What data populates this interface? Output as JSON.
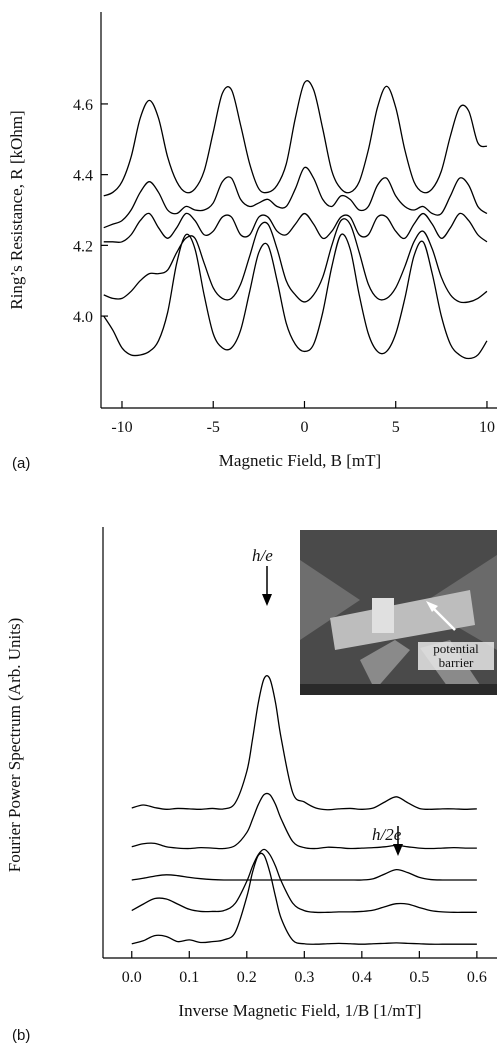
{
  "chart_data": [
    {
      "type": "line",
      "panel_label": "(a)",
      "x_label": "Magnetic Field, B [mT]",
      "y_label": "Ring’s Resistance, R [kOhm]",
      "color": "#000000",
      "x": [
        -11,
        -10.5,
        -10,
        -9.5,
        -9,
        -8.5,
        -8,
        -7.5,
        -7,
        -6.5,
        -6,
        -5.5,
        -5,
        -4.5,
        -4,
        -3.5,
        -3,
        -2.5,
        -2,
        -1.5,
        -1,
        -0.5,
        0,
        0.5,
        1,
        1.5,
        2,
        2.5,
        3,
        3.5,
        4,
        4.5,
        5,
        5.5,
        6,
        6.5,
        7,
        7.5,
        8,
        8.5,
        9,
        9.5,
        10
      ],
      "series": [
        {
          "values": [
            4.34,
            4.35,
            4.38,
            4.45,
            4.56,
            4.61,
            4.56,
            4.45,
            4.38,
            4.35,
            4.36,
            4.41,
            4.52,
            4.63,
            4.64,
            4.54,
            4.43,
            4.36,
            4.35,
            4.37,
            4.43,
            4.56,
            4.66,
            4.64,
            4.53,
            4.41,
            4.36,
            4.35,
            4.38,
            4.47,
            4.59,
            4.65,
            4.59,
            4.47,
            4.38,
            4.35,
            4.36,
            4.41,
            4.51,
            4.59,
            4.58,
            4.49,
            4.48
          ]
        },
        {
          "values": [
            4.25,
            4.26,
            4.27,
            4.3,
            4.35,
            4.38,
            4.35,
            4.3,
            4.29,
            4.31,
            4.3,
            4.3,
            4.32,
            4.38,
            4.39,
            4.33,
            4.31,
            4.32,
            4.33,
            4.31,
            4.31,
            4.36,
            4.42,
            4.39,
            4.33,
            4.31,
            4.34,
            4.33,
            4.3,
            4.31,
            4.37,
            4.39,
            4.34,
            4.31,
            4.3,
            4.31,
            4.29,
            4.29,
            4.34,
            4.39,
            4.37,
            4.31,
            4.29
          ]
        },
        {
          "values": [
            4.21,
            4.21,
            4.21,
            4.23,
            4.27,
            4.29,
            4.25,
            4.22,
            4.25,
            4.29,
            4.27,
            4.23,
            4.24,
            4.28,
            4.28,
            4.23,
            4.23,
            4.28,
            4.28,
            4.24,
            4.23,
            4.26,
            4.29,
            4.26,
            4.22,
            4.24,
            4.28,
            4.28,
            4.23,
            4.23,
            4.28,
            4.28,
            4.24,
            4.22,
            4.26,
            4.29,
            4.26,
            4.22,
            4.25,
            4.29,
            4.27,
            4.23,
            4.21
          ]
        },
        {
          "values": [
            4.06,
            4.05,
            4.05,
            4.07,
            4.1,
            4.12,
            4.12,
            4.13,
            4.18,
            4.22,
            4.22,
            4.15,
            4.08,
            4.05,
            4.05,
            4.09,
            4.17,
            4.25,
            4.26,
            4.19,
            4.1,
            4.06,
            4.04,
            4.06,
            4.11,
            4.2,
            4.27,
            4.26,
            4.18,
            4.09,
            4.05,
            4.05,
            4.08,
            4.14,
            4.21,
            4.24,
            4.19,
            4.11,
            4.06,
            4.04,
            4.04,
            4.05,
            4.07
          ]
        },
        {
          "values": [
            4.0,
            3.96,
            3.91,
            3.89,
            3.89,
            3.9,
            3.93,
            4.01,
            4.15,
            4.23,
            4.19,
            4.06,
            3.95,
            3.91,
            3.91,
            3.96,
            4.07,
            4.18,
            4.2,
            4.1,
            3.98,
            3.92,
            3.9,
            3.92,
            4.01,
            4.14,
            4.23,
            4.19,
            4.06,
            3.95,
            3.9,
            3.9,
            3.95,
            4.05,
            4.17,
            4.21,
            4.12,
            4.0,
            3.92,
            3.89,
            3.88,
            3.89,
            3.93
          ]
        }
      ],
      "xlim": [
        -11.15,
        10.55
      ],
      "ylim": [
        3.74,
        4.86
      ],
      "xticks": [
        -10,
        -5,
        0,
        5,
        10
      ],
      "yticks": [
        {
          "value": 4,
          "label": "4.0"
        },
        4.2,
        4.4,
        4.6
      ]
    },
    {
      "type": "line",
      "panel_label": "(b)",
      "x_label": "Inverse Magnetic Field, 1/B [1/mT]",
      "y_label": "Fourier Power Spectrum (Arb. Units)",
      "color": "#000000",
      "annotations": [
        "h/e",
        "h/2e",
        "potential barrier"
      ],
      "x": [
        0,
        0.02,
        0.04,
        0.06,
        0.08,
        0.1,
        0.12,
        0.14,
        0.16,
        0.18,
        0.2,
        0.21,
        0.22,
        0.23,
        0.24,
        0.25,
        0.26,
        0.28,
        0.3,
        0.32,
        0.34,
        0.36,
        0.38,
        0.4,
        0.42,
        0.44,
        0.46,
        0.48,
        0.5,
        0.52,
        0.54,
        0.56,
        0.58,
        0.6
      ],
      "series": [
        {
          "values": [
            3.48,
            3.55,
            3.49,
            3.45,
            3.47,
            3.46,
            3.45,
            3.47,
            3.46,
            3.6,
            4.33,
            5.08,
            5.92,
            6.48,
            6.48,
            5.92,
            5.08,
            3.83,
            3.62,
            3.48,
            3.44,
            3.46,
            3.47,
            3.45,
            3.48,
            3.62,
            3.74,
            3.6,
            3.47,
            3.45,
            3.46,
            3.46,
            3.45,
            3.46
          ]
        },
        {
          "values": [
            2.58,
            2.65,
            2.66,
            2.58,
            2.55,
            2.54,
            2.56,
            2.55,
            2.54,
            2.61,
            2.91,
            3.22,
            3.56,
            3.79,
            3.79,
            3.56,
            3.22,
            2.7,
            2.56,
            2.54,
            2.57,
            2.56,
            2.54,
            2.55,
            2.56,
            2.58,
            2.61,
            2.58,
            2.55,
            2.54,
            2.55,
            2.56,
            2.55,
            2.55
          ]
        },
        {
          "values": [
            1.81,
            1.85,
            1.9,
            1.93,
            1.91,
            1.87,
            1.84,
            1.82,
            1.81,
            1.81,
            1.81,
            1.81,
            1.81,
            1.81,
            1.81,
            1.81,
            1.81,
            1.81,
            1.81,
            1.81,
            1.81,
            1.81,
            1.81,
            1.81,
            1.84,
            1.95,
            2.05,
            1.98,
            1.87,
            1.82,
            1.81,
            1.81,
            1.81,
            1.81
          ]
        },
        {
          "values": [
            1.1,
            1.25,
            1.38,
            1.37,
            1.25,
            1.13,
            1.08,
            1.08,
            1.1,
            1.27,
            1.78,
            2.13,
            2.4,
            2.52,
            2.4,
            2.13,
            1.78,
            1.27,
            1.1,
            1.06,
            1.06,
            1.07,
            1.07,
            1.08,
            1.11,
            1.19,
            1.26,
            1.25,
            1.17,
            1.1,
            1.07,
            1.06,
            1.06,
            1.06
          ]
        },
        {
          "values": [
            0.33,
            0.4,
            0.52,
            0.5,
            0.38,
            0.42,
            0.36,
            0.38,
            0.42,
            0.6,
            1.42,
            1.99,
            2.38,
            2.38,
            1.99,
            1.42,
            0.91,
            0.41,
            0.33,
            0.32,
            0.33,
            0.34,
            0.33,
            0.32,
            0.33,
            0.34,
            0.35,
            0.34,
            0.33,
            0.32,
            0.32,
            0.32,
            0.32,
            0.32
          ]
        }
      ],
      "xlim": [
        -0.05,
        0.635
      ],
      "ylim": [
        0,
        10
      ],
      "xticks": [
        {
          "value": 0,
          "label": "0.0"
        },
        0.1,
        0.2,
        0.3,
        0.4,
        0.5,
        0.6
      ]
    }
  ]
}
